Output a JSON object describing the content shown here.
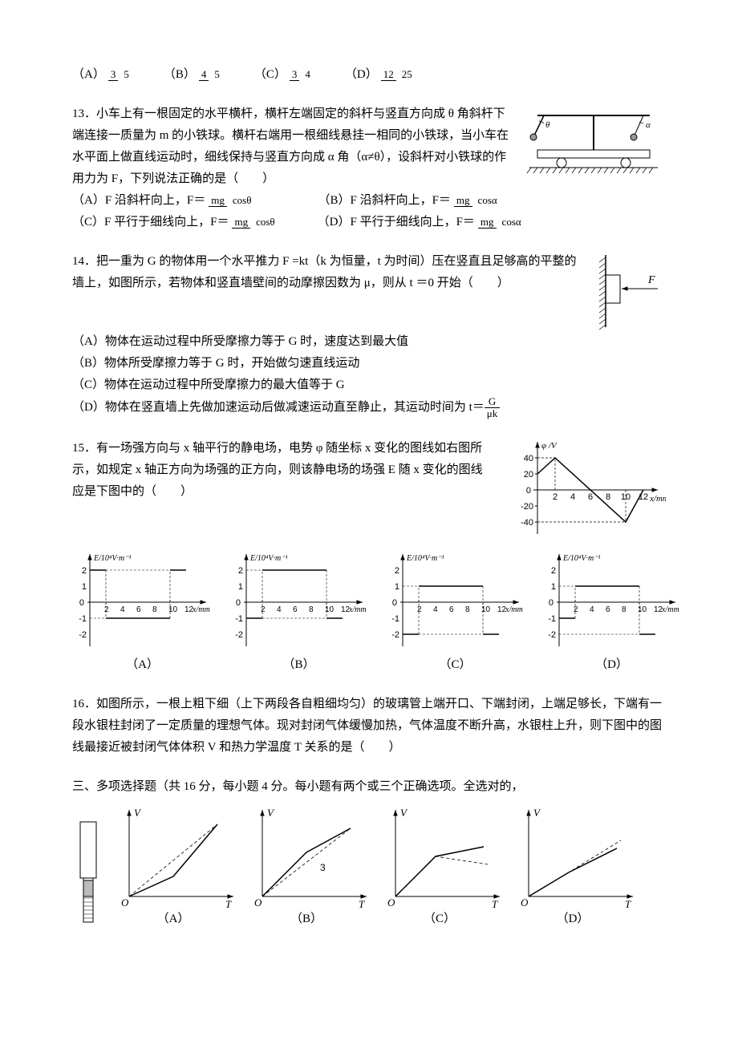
{
  "q12": {
    "opts": [
      {
        "l": "（A）",
        "n": "3",
        "d": "5"
      },
      {
        "l": "（B）",
        "n": "4",
        "d": "5"
      },
      {
        "l": "（C）",
        "n": "3",
        "d": "4"
      },
      {
        "l": "（D）",
        "n": "12",
        "d": "25"
      }
    ]
  },
  "q13": {
    "num": "13．",
    "text": "小车上有一根固定的水平横杆，横杆左端固定的斜杆与竖直方向成 θ 角斜杆下端连接一质量为 m 的小铁球。横杆右端用一根细线悬挂一相同的小铁球，当小车在水平面上做直线运动时，细线保持与竖直方向成 α 角（α≠θ），设斜杆对小铁球的作用力为 F，下列说法正确的是（　　）",
    "optA": {
      "l": "（A）F 沿斜杆向上，F＝",
      "n": "mg",
      "d": "cosθ"
    },
    "optB": {
      "l": "（B）F 沿斜杆向上，F＝",
      "n": "mg",
      "d": "cosα"
    },
    "optC": {
      "l": "（C）F 平行于细线向上，F＝",
      "n": "mg",
      "d": "cosθ"
    },
    "optD": {
      "l": "（D）F 平行于细线向上，F＝",
      "n": "mg",
      "d": "cosα"
    },
    "fig": {
      "w": 180,
      "h": 90,
      "theta": "θ",
      "alpha": "α"
    }
  },
  "q14": {
    "num": "14．",
    "text": "把一重为 G 的物体用一个水平推力 F =kt（k 为恒量，t 为时间）压在竖直且足够高的平整的墙上，如图所示，若物体和竖直墙壁间的动摩擦因数为 μ，则从 t ＝0 开始（　　）",
    "a": "（A）物体在运动过程中所受摩擦力等于 G 时，速度达到最大值",
    "b": "（B）物体所受摩擦力等于 G 时，开始做匀速直线运动",
    "c": "（C）物体在运动过程中所受摩擦力的最大值等于 G",
    "d": "（D）物体在竖直墙上先做加速运动后做减速运动直至静止，其运动时间为 t＝",
    "dn": "G",
    "dd": "μk",
    "F": "F"
  },
  "q15": {
    "num": "15．",
    "text": "有一场强方向与 x 轴平行的静电场，电势 φ 随坐标 x 变化的图线如右图所示，如规定 x 轴正方向为场强的正方向，则该静电场的场强 E 随 x 变化的图线应是下图中的（　　）",
    "phi": {
      "ylabel": "φ /V",
      "xlabel": "x/mm",
      "yticks": [
        40,
        20,
        0,
        -20,
        -40
      ],
      "xticks": [
        2,
        4,
        6,
        8,
        10,
        12
      ],
      "pts": [
        [
          0,
          20
        ],
        [
          2,
          40
        ],
        [
          10,
          -40
        ],
        [
          12,
          0
        ]
      ]
    },
    "ylabel": "E/10⁴V·m⁻¹",
    "xlabel": "x/mm",
    "yticks": [
      2,
      1,
      0,
      -1,
      -2
    ],
    "xticks": [
      2,
      4,
      6,
      8,
      10,
      12
    ],
    "labels": [
      "（A）",
      "（B）",
      "（C）",
      "（D）"
    ],
    "A": [
      [
        0,
        2
      ],
      [
        2,
        2
      ],
      [
        2,
        -1
      ],
      [
        10,
        -1
      ],
      [
        10,
        2
      ],
      [
        12,
        2
      ]
    ],
    "B": [
      [
        0,
        -1
      ],
      [
        2,
        -1
      ],
      [
        2,
        2
      ],
      [
        10,
        2
      ],
      [
        10,
        -1
      ],
      [
        12,
        -1
      ]
    ],
    "C": [
      [
        0,
        -2
      ],
      [
        2,
        -2
      ],
      [
        2,
        1
      ],
      [
        10,
        1
      ],
      [
        10,
        -2
      ],
      [
        12,
        -2
      ]
    ],
    "D": [
      [
        0,
        -1
      ],
      [
        2,
        -1
      ],
      [
        2,
        1
      ],
      [
        10,
        1
      ],
      [
        10,
        -2
      ],
      [
        12,
        -2
      ]
    ]
  },
  "q16": {
    "num": "16．",
    "text": "如图所示，一根上粗下细（上下两段各自粗细均匀）的玻璃管上端开口、下端封闭，上端足够长，下端有一段水银柱封闭了一定质量的理想气体。现对封闭气体缓慢加热，气体温度不断升高，水银柱上升，则下图中的图线最接近被封闭气体体积 V 和热力学温度 T 关系的是（　　）"
  },
  "sec3": {
    "title": "三、多项选择题（共 16 分，每小题 4 分。每小题有两个或三个正确选项。全选对的，"
  },
  "vt": {
    "yl": "V",
    "xl": "T",
    "ol": "O",
    "labels": [
      "（A）",
      "（B）",
      "（C）",
      "（D）"
    ],
    "page": "3"
  }
}
